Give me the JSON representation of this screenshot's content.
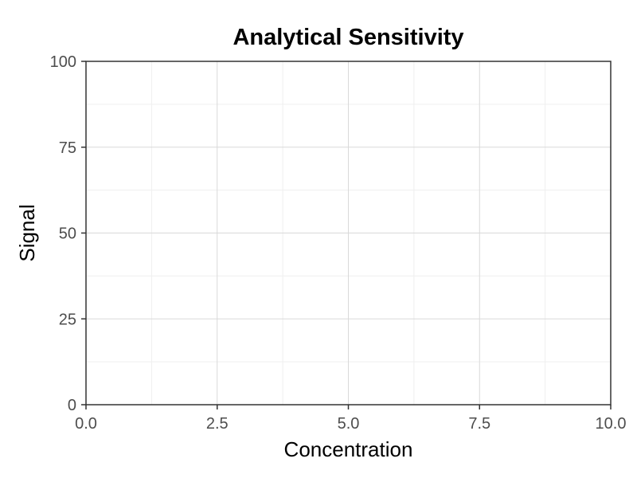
{
  "chart_data": {
    "type": "scatter",
    "title": "Analytical Sensitivity",
    "xlabel": "Concentration",
    "ylabel": "Signal",
    "xlim": [
      0,
      10
    ],
    "ylim": [
      0,
      100
    ],
    "x_ticks": [
      0,
      2.5,
      5,
      7.5,
      10
    ],
    "x_tick_labels": [
      "0.0",
      "2.5",
      "5.0",
      "7.5",
      "10.0"
    ],
    "y_ticks": [
      0,
      25,
      50,
      75,
      100
    ],
    "y_tick_labels": [
      "0",
      "25",
      "50",
      "75",
      "100"
    ],
    "x_minor_ticks": [
      1.25,
      3.75,
      6.25,
      8.75
    ],
    "y_minor_ticks": [
      12.5,
      37.5,
      62.5,
      87.5
    ],
    "grid": true,
    "series": []
  }
}
